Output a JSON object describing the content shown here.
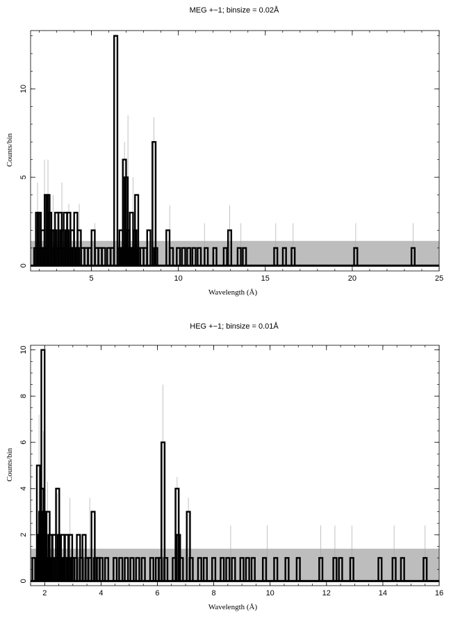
{
  "chart_data": [
    {
      "type": "histogram-step",
      "title": "MEG +−1; binsize = 0.02Å",
      "xlabel": "Wavelength (Å)",
      "ylabel": "Counts/bin",
      "xlim": [
        1.5,
        25
      ],
      "ylim": [
        -0.3,
        13.3
      ],
      "xticks_major": [
        5,
        10,
        15,
        20,
        25
      ],
      "xticks_minor_step": 1,
      "yticks_major": [
        0,
        5,
        10
      ],
      "yticks_minor_step": 1,
      "background_band": [
        0,
        1.4
      ],
      "counts_series": {
        "name": "",
        "points": [
          [
            1.8,
            1
          ],
          [
            1.9,
            3
          ],
          [
            2.0,
            3
          ],
          [
            2.1,
            1
          ],
          [
            2.2,
            2
          ],
          [
            2.3,
            1
          ],
          [
            2.4,
            4
          ],
          [
            2.5,
            4
          ],
          [
            2.6,
            3
          ],
          [
            2.7,
            2
          ],
          [
            2.8,
            1
          ],
          [
            2.9,
            2
          ],
          [
            3.0,
            3
          ],
          [
            3.1,
            1
          ],
          [
            3.2,
            3
          ],
          [
            3.3,
            2
          ],
          [
            3.4,
            1
          ],
          [
            3.5,
            3
          ],
          [
            3.6,
            2
          ],
          [
            3.7,
            3
          ],
          [
            3.8,
            1
          ],
          [
            3.9,
            2
          ],
          [
            4.0,
            1
          ],
          [
            4.1,
            3
          ],
          [
            4.2,
            1
          ],
          [
            4.3,
            2
          ],
          [
            4.5,
            1
          ],
          [
            4.7,
            1
          ],
          [
            4.9,
            1
          ],
          [
            5.1,
            2
          ],
          [
            5.3,
            1
          ],
          [
            5.5,
            1
          ],
          [
            5.7,
            1
          ],
          [
            6.0,
            1
          ],
          [
            6.2,
            1
          ],
          [
            6.4,
            13
          ],
          [
            6.6,
            1
          ],
          [
            6.7,
            2
          ],
          [
            6.8,
            1
          ],
          [
            6.9,
            6
          ],
          [
            7.0,
            5
          ],
          [
            7.1,
            2
          ],
          [
            7.2,
            1
          ],
          [
            7.3,
            3
          ],
          [
            7.4,
            1
          ],
          [
            7.5,
            2
          ],
          [
            7.6,
            4
          ],
          [
            7.7,
            1
          ],
          [
            7.9,
            1
          ],
          [
            8.1,
            1
          ],
          [
            8.3,
            2
          ],
          [
            8.6,
            7
          ],
          [
            8.7,
            1
          ],
          [
            9.4,
            2
          ],
          [
            9.6,
            1
          ],
          [
            10.0,
            1
          ],
          [
            10.3,
            1
          ],
          [
            10.6,
            1
          ],
          [
            10.9,
            1
          ],
          [
            11.2,
            1
          ],
          [
            11.6,
            1
          ],
          [
            12.1,
            1
          ],
          [
            12.7,
            1
          ],
          [
            12.95,
            2
          ],
          [
            13.5,
            1
          ],
          [
            13.8,
            1
          ],
          [
            15.6,
            1
          ],
          [
            16.1,
            1
          ],
          [
            16.6,
            1
          ],
          [
            20.2,
            1
          ],
          [
            23.5,
            1
          ]
        ]
      },
      "model_spikes": [
        [
          1.9,
          4.7
        ],
        [
          2.3,
          6.0
        ],
        [
          2.5,
          6.0
        ],
        [
          2.8,
          4.0
        ],
        [
          3.3,
          4.7
        ],
        [
          3.7,
          3.5
        ],
        [
          4.3,
          3.5
        ],
        [
          5.2,
          2.4
        ],
        [
          6.5,
          11.0
        ],
        [
          6.9,
          7.0
        ],
        [
          7.1,
          8.5
        ],
        [
          7.4,
          5.0
        ],
        [
          8.6,
          8.4
        ],
        [
          9.5,
          3.4
        ],
        [
          11.5,
          2.4
        ],
        [
          12.95,
          3.4
        ],
        [
          13.6,
          2.4
        ],
        [
          15.6,
          2.4
        ],
        [
          16.6,
          2.4
        ],
        [
          20.2,
          2.4
        ],
        [
          23.5,
          2.4
        ]
      ]
    },
    {
      "type": "histogram-step",
      "title": "HEG +−1; binsize = 0.01Å",
      "xlabel": "Wavelength (Å)",
      "ylabel": "Counts/bin",
      "xlim": [
        1.5,
        16
      ],
      "ylim": [
        -0.2,
        10.2
      ],
      "xticks_major": [
        2,
        4,
        6,
        8,
        10,
        12,
        14,
        16
      ],
      "xticks_minor_step": 0.5,
      "yticks_major": [
        0,
        2,
        4,
        6,
        8,
        10
      ],
      "yticks_minor_step": 0.5,
      "background_band": [
        0,
        1.4
      ],
      "counts_series": {
        "name": "",
        "points": [
          [
            1.62,
            1
          ],
          [
            1.72,
            1
          ],
          [
            1.78,
            5
          ],
          [
            1.82,
            2
          ],
          [
            1.86,
            3
          ],
          [
            1.9,
            4
          ],
          [
            1.94,
            10
          ],
          [
            1.98,
            3
          ],
          [
            2.02,
            2
          ],
          [
            2.06,
            1
          ],
          [
            2.12,
            3
          ],
          [
            2.2,
            2
          ],
          [
            2.28,
            1
          ],
          [
            2.34,
            2
          ],
          [
            2.4,
            1
          ],
          [
            2.46,
            4
          ],
          [
            2.52,
            2
          ],
          [
            2.58,
            1
          ],
          [
            2.64,
            2
          ],
          [
            2.72,
            1
          ],
          [
            2.78,
            2
          ],
          [
            2.86,
            1
          ],
          [
            2.92,
            2
          ],
          [
            3.0,
            1
          ],
          [
            3.1,
            1
          ],
          [
            3.2,
            2
          ],
          [
            3.3,
            1
          ],
          [
            3.4,
            2
          ],
          [
            3.5,
            1
          ],
          [
            3.6,
            1
          ],
          [
            3.72,
            3
          ],
          [
            3.8,
            1
          ],
          [
            3.9,
            1
          ],
          [
            4.0,
            1
          ],
          [
            4.2,
            1
          ],
          [
            4.5,
            1
          ],
          [
            4.7,
            1
          ],
          [
            4.9,
            1
          ],
          [
            5.1,
            1
          ],
          [
            5.3,
            1
          ],
          [
            5.5,
            1
          ],
          [
            5.8,
            1
          ],
          [
            6.0,
            1
          ],
          [
            6.1,
            1
          ],
          [
            6.2,
            6
          ],
          [
            6.3,
            1
          ],
          [
            6.6,
            1
          ],
          [
            6.7,
            4
          ],
          [
            6.75,
            2
          ],
          [
            6.85,
            1
          ],
          [
            7.1,
            3
          ],
          [
            7.2,
            1
          ],
          [
            7.5,
            1
          ],
          [
            7.7,
            1
          ],
          [
            8.0,
            1
          ],
          [
            8.3,
            1
          ],
          [
            8.5,
            1
          ],
          [
            8.7,
            1
          ],
          [
            9.0,
            1
          ],
          [
            9.2,
            1
          ],
          [
            9.4,
            1
          ],
          [
            9.8,
            1
          ],
          [
            10.2,
            1
          ],
          [
            10.6,
            1
          ],
          [
            11.0,
            1
          ],
          [
            11.8,
            1
          ],
          [
            12.3,
            1
          ],
          [
            12.5,
            1
          ],
          [
            12.9,
            1
          ],
          [
            13.9,
            1
          ],
          [
            14.4,
            1
          ],
          [
            14.7,
            1
          ],
          [
            15.5,
            1
          ]
        ]
      },
      "model_spikes": [
        [
          1.8,
          7.2
        ],
        [
          1.95,
          6.5
        ],
        [
          2.1,
          4.3
        ],
        [
          2.45,
          3.8
        ],
        [
          2.9,
          3.6
        ],
        [
          3.6,
          3.6
        ],
        [
          3.8,
          2.8
        ],
        [
          6.2,
          8.5
        ],
        [
          6.7,
          4.5
        ],
        [
          7.1,
          3.6
        ],
        [
          8.6,
          2.4
        ],
        [
          9.9,
          2.4
        ],
        [
          11.8,
          2.4
        ],
        [
          12.3,
          2.4
        ],
        [
          12.9,
          2.4
        ],
        [
          14.4,
          2.4
        ],
        [
          15.5,
          2.4
        ]
      ]
    }
  ]
}
